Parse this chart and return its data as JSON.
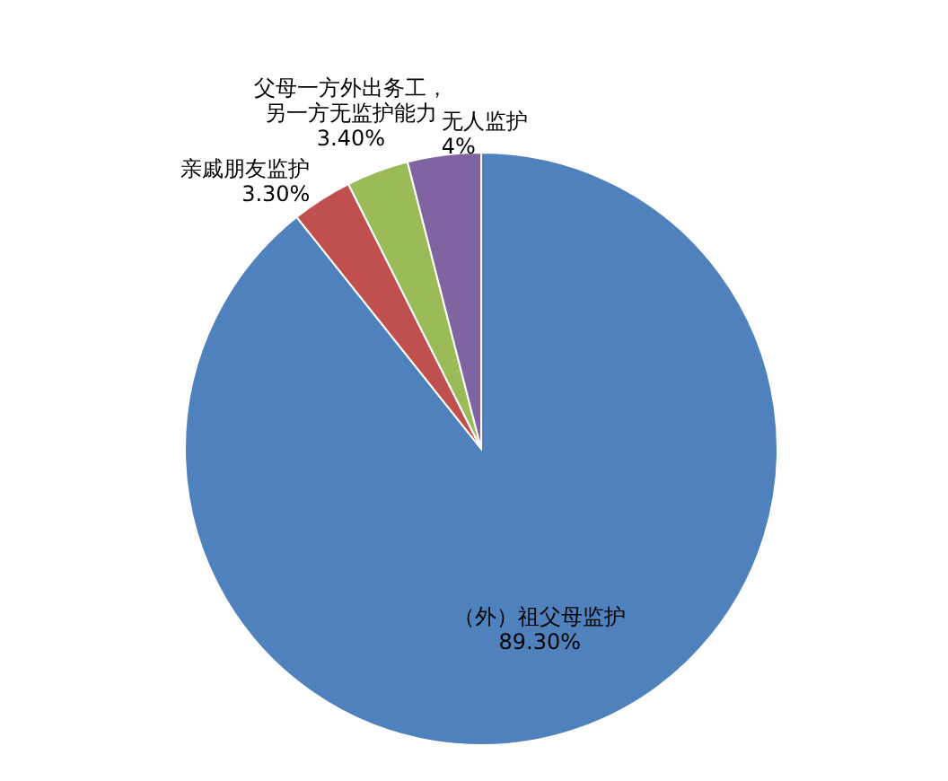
{
  "chart_data": {
    "type": "pie",
    "categories": [
      "（外）祖父母监护",
      "亲戚朋友监护",
      "父母一方外出务工，另一方无监护能力",
      "无人监护"
    ],
    "values": [
      89.3,
      3.3,
      3.4,
      4
    ],
    "value_labels": [
      "89.30%",
      "3.30%",
      "3.40%",
      "4%"
    ],
    "colors": [
      "#4f81bd",
      "#c0504d",
      "#9bbb59",
      "#8064a2"
    ]
  }
}
